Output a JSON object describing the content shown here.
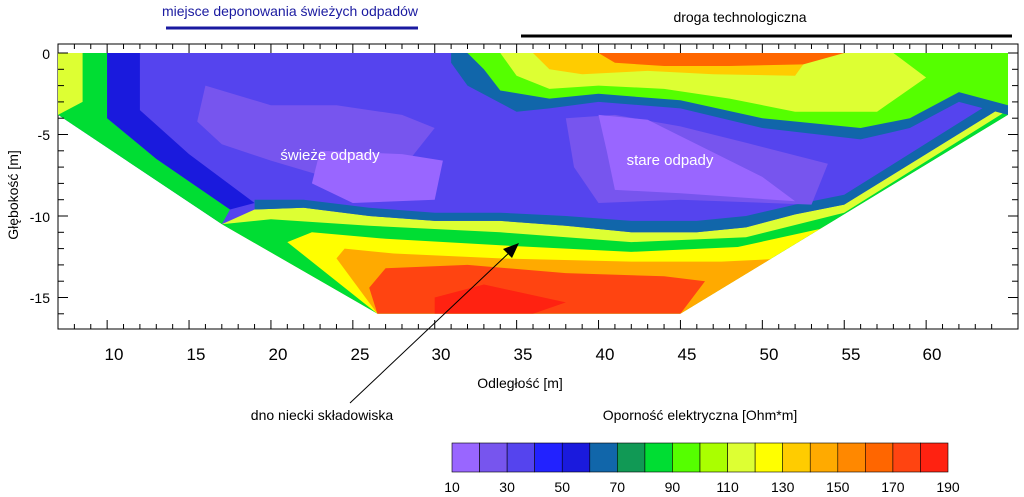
{
  "chart_data": {
    "type": "heatmap",
    "title": "",
    "xlabel": "Odległość [m]",
    "ylabel": "Głębokość [m]",
    "xlim": [
      7,
      65
    ],
    "ylim": [
      -16,
      0
    ],
    "x_ticks": [
      "10",
      "15",
      "20",
      "25",
      "30",
      "35",
      "40",
      "45",
      "50",
      "55",
      "60"
    ],
    "y_ticks": [
      "0",
      "-5",
      "-10",
      "-15"
    ],
    "grid": false,
    "annotations": {
      "fresh_waste_zone": "miejsce deponowania świeżych odpadów",
      "road": "droga technologiczna",
      "fresh_waste": "świeże odpady",
      "old_waste": "stare odpady",
      "pit_bottom": "dno niecki składowiska"
    },
    "colorbar": {
      "label": "Oporność elektryczna [Ohm*m]",
      "tick_labels": [
        "10",
        "30",
        "50",
        "70",
        "90",
        "110",
        "130",
        "150",
        "170",
        "190"
      ],
      "levels": [
        10,
        20,
        30,
        40,
        50,
        60,
        70,
        80,
        90,
        100,
        110,
        120,
        130,
        140,
        150,
        160,
        170,
        180,
        190
      ],
      "colors": [
        "#9966ff",
        "#7755ee",
        "#5544ee",
        "#2222ff",
        "#1a1add",
        "#1166aa",
        "#119955",
        "#00dd33",
        "#55ff00",
        "#aaff00",
        "#ddff33",
        "#ffff00",
        "#ffcc00",
        "#ffaa00",
        "#ff8800",
        "#ff6600",
        "#ff4411",
        "#ff2211"
      ]
    },
    "section_outline": [
      [
        7,
        0
      ],
      [
        65,
        0
      ],
      [
        65,
        -3.8
      ],
      [
        54,
        -10.5
      ],
      [
        45,
        -16
      ],
      [
        26.5,
        -16
      ],
      [
        17,
        -10.5
      ],
      [
        7,
        -3.8
      ]
    ],
    "resistivity_zones": [
      {
        "name": "background",
        "value": 38
      },
      {
        "name": "left-margin",
        "value": 80,
        "points": [
          [
            7,
            0
          ],
          [
            10,
            0
          ],
          [
            10,
            -4
          ],
          [
            13,
            -6.5
          ],
          [
            17.5,
            -9.6
          ],
          [
            17,
            -10.5
          ],
          [
            7,
            -3.8
          ]
        ]
      },
      {
        "name": "left-margin-blue",
        "value": 58,
        "points": [
          [
            10,
            0
          ],
          [
            12,
            0
          ],
          [
            12,
            -3.5
          ],
          [
            15,
            -6.2
          ],
          [
            19,
            -9.2
          ],
          [
            17.5,
            -9.6
          ],
          [
            13,
            -6.5
          ],
          [
            10,
            -4
          ]
        ]
      },
      {
        "name": "left-margin-light",
        "value": 110,
        "points": [
          [
            7,
            0
          ],
          [
            8.5,
            0
          ],
          [
            8.5,
            -3
          ],
          [
            7,
            -3.8
          ]
        ]
      },
      {
        "name": "bottom-bowl",
        "value": 110,
        "points": [
          [
            17,
            -10.5
          ],
          [
            19,
            -9.6
          ],
          [
            22,
            -9.5
          ],
          [
            26,
            -10
          ],
          [
            30,
            -10.3
          ],
          [
            34,
            -10.3
          ],
          [
            38,
            -10.6
          ],
          [
            42,
            -11
          ],
          [
            46,
            -11
          ],
          [
            49,
            -10.7
          ],
          [
            52,
            -9.9
          ],
          [
            55,
            -9.3
          ],
          [
            65,
            -3.1
          ],
          [
            65,
            -3.8
          ],
          [
            54,
            -10.5
          ],
          [
            45,
            -16
          ],
          [
            26.5,
            -16
          ]
        ]
      },
      {
        "name": "bottom-transition",
        "value": 60,
        "points": [
          [
            19,
            -9.6
          ],
          [
            22,
            -9.5
          ],
          [
            26,
            -10
          ],
          [
            30,
            -10.3
          ],
          [
            34,
            -10.3
          ],
          [
            38,
            -10.6
          ],
          [
            42,
            -11
          ],
          [
            46,
            -11
          ],
          [
            49,
            -10.7
          ],
          [
            52,
            -9.9
          ],
          [
            55,
            -9.3
          ],
          [
            65,
            -3.1
          ],
          [
            65,
            -2.4
          ],
          [
            55,
            -8.7
          ],
          [
            52,
            -9.3
          ],
          [
            49,
            -10
          ],
          [
            46,
            -10.3
          ],
          [
            42,
            -10.3
          ],
          [
            38,
            -10
          ],
          [
            34,
            -9.8
          ],
          [
            30,
            -9.8
          ],
          [
            26,
            -9.5
          ],
          [
            22,
            -9
          ],
          [
            19,
            -9
          ]
        ]
      },
      {
        "name": "bottom-green",
        "value": 88,
        "points": [
          [
            20,
            -10.2
          ],
          [
            26,
            -10.6
          ],
          [
            34,
            -11
          ],
          [
            42,
            -11.6
          ],
          [
            49,
            -11.3
          ],
          [
            55,
            -9.8
          ],
          [
            65,
            -3.5
          ],
          [
            65,
            -3.8
          ],
          [
            54,
            -10.5
          ],
          [
            45,
            -16
          ],
          [
            26.5,
            -16
          ],
          [
            17,
            -10.5
          ]
        ]
      },
      {
        "name": "bottom-yellow",
        "value": 125,
        "points": [
          [
            22.5,
            -11
          ],
          [
            27,
            -11.4
          ],
          [
            34,
            -11.8
          ],
          [
            42,
            -12.2
          ],
          [
            48.5,
            -11.9
          ],
          [
            53.5,
            -10.8
          ],
          [
            54,
            -10.5
          ],
          [
            45,
            -16
          ],
          [
            26.5,
            -16
          ],
          [
            21,
            -11.6
          ]
        ]
      },
      {
        "name": "bottom-orange",
        "value": 148,
        "points": [
          [
            24.5,
            -12
          ],
          [
            27.5,
            -12.3
          ],
          [
            34,
            -12.6
          ],
          [
            42,
            -12.8
          ],
          [
            47.5,
            -12.8
          ],
          [
            51.5,
            -12.6
          ],
          [
            45,
            -16
          ],
          [
            26.5,
            -16
          ],
          [
            24,
            -12.6
          ]
        ]
      },
      {
        "name": "bottom-core",
        "value": 170,
        "points": [
          [
            27,
            -13.2
          ],
          [
            32,
            -13
          ],
          [
            38,
            -13.5
          ],
          [
            44,
            -13.7
          ],
          [
            46.5,
            -14
          ],
          [
            45,
            -16
          ],
          [
            26.5,
            -16
          ],
          [
            26,
            -14.4
          ]
        ]
      },
      {
        "name": "bottom-core-deep",
        "value": 185,
        "points": [
          [
            30,
            -15
          ],
          [
            33,
            -14.2
          ],
          [
            38,
            -15.3
          ],
          [
            36,
            -16
          ],
          [
            30,
            -16
          ]
        ]
      },
      {
        "name": "road-transition",
        "value": 60,
        "points": [
          [
            31,
            0
          ],
          [
            65,
            0
          ],
          [
            65,
            -3.8
          ],
          [
            62,
            -3
          ],
          [
            59,
            -4.6
          ],
          [
            56,
            -5.3
          ],
          [
            50,
            -4.6
          ],
          [
            45,
            -3.4
          ],
          [
            40,
            -3
          ],
          [
            37,
            -3.4
          ],
          [
            35,
            -3.6
          ],
          [
            32,
            -2
          ],
          [
            31,
            -0.6
          ]
        ]
      },
      {
        "name": "road-green",
        "value": 90,
        "points": [
          [
            32,
            0
          ],
          [
            65,
            0
          ],
          [
            65,
            -3.2
          ],
          [
            62,
            -2.4
          ],
          [
            59,
            -4
          ],
          [
            56,
            -4.6
          ],
          [
            50,
            -4
          ],
          [
            45,
            -2.9
          ],
          [
            40,
            -2.5
          ],
          [
            37,
            -2.8
          ],
          [
            34,
            -2.3
          ],
          [
            33,
            -1
          ]
        ]
      },
      {
        "name": "road-light",
        "value": 115,
        "points": [
          [
            34,
            0
          ],
          [
            58,
            0
          ],
          [
            60,
            -1.5
          ],
          [
            57,
            -3.6
          ],
          [
            52,
            -3.6
          ],
          [
            48,
            -2.8
          ],
          [
            44,
            -2.2
          ],
          [
            40,
            -2
          ],
          [
            37,
            -2.2
          ],
          [
            35,
            -1.4
          ]
        ]
      },
      {
        "name": "road-yellow",
        "value": 135,
        "points": [
          [
            36,
            0
          ],
          [
            53,
            0
          ],
          [
            52,
            -1.4
          ],
          [
            47,
            -1.3
          ],
          [
            43,
            -1.1
          ],
          [
            39,
            -1.3
          ],
          [
            37,
            -1
          ]
        ]
      },
      {
        "name": "road-core",
        "value": 160,
        "points": [
          [
            40,
            0
          ],
          [
            55,
            0
          ],
          [
            52.5,
            -0.7
          ],
          [
            48,
            -0.8
          ],
          [
            44,
            -0.8
          ],
          [
            41,
            -0.6
          ]
        ]
      },
      {
        "name": "fresh-waste",
        "value": 24,
        "points": [
          [
            16,
            -2
          ],
          [
            20,
            -3.2
          ],
          [
            24,
            -3.2
          ],
          [
            28,
            -3.8
          ],
          [
            30,
            -4.6
          ],
          [
            28.5,
            -6.5
          ],
          [
            27,
            -7.5
          ],
          [
            23,
            -7.5
          ],
          [
            20,
            -6.6
          ],
          [
            17,
            -5.6
          ],
          [
            15.5,
            -4.2
          ]
        ]
      },
      {
        "name": "fresh-waste-core",
        "value": 12,
        "points": [
          [
            23,
            -6
          ],
          [
            28,
            -6.2
          ],
          [
            30.5,
            -6.6
          ],
          [
            30,
            -9
          ],
          [
            25,
            -9.2
          ],
          [
            22.5,
            -8
          ]
        ]
      },
      {
        "name": "old-waste",
        "value": 22,
        "points": [
          [
            38,
            -4
          ],
          [
            41,
            -3.8
          ],
          [
            45,
            -4.5
          ],
          [
            49,
            -5.5
          ],
          [
            54,
            -6.8
          ],
          [
            53,
            -9.3
          ],
          [
            45,
            -9
          ],
          [
            40,
            -9.2
          ],
          [
            38.5,
            -7
          ]
        ]
      },
      {
        "name": "old-waste-core",
        "value": 12,
        "points": [
          [
            40,
            -3.8
          ],
          [
            43,
            -4.1
          ],
          [
            46,
            -5.6
          ],
          [
            50,
            -7.6
          ],
          [
            52,
            -9.1
          ],
          [
            45,
            -8.6
          ],
          [
            41,
            -8.4
          ],
          [
            40.5,
            -6
          ]
        ]
      }
    ]
  }
}
